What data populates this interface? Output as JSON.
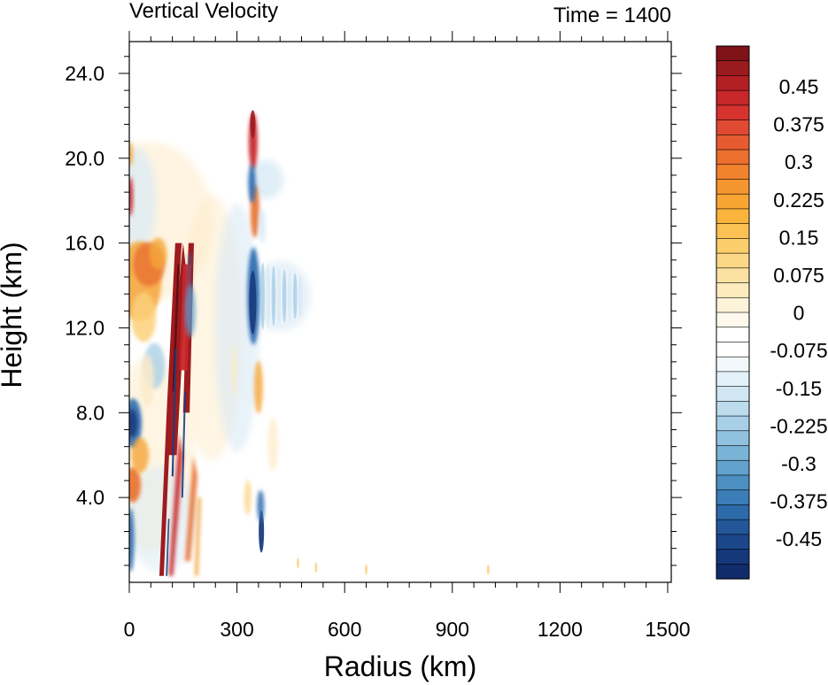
{
  "chart_data": {
    "type": "heatmap",
    "title": "Vertical Velocity",
    "subtitle": "Time = 1400",
    "xlabel": "Radius (km)",
    "ylabel": "Height (km)",
    "xlim": [
      0,
      1510
    ],
    "ylim": [
      0,
      25.5
    ],
    "x_ticks": [
      "0",
      "300",
      "600",
      "900",
      "1200",
      "1500"
    ],
    "y_ticks": [
      "4.0",
      "8.0",
      "12.0",
      "16.0",
      "20.0",
      "24.0"
    ],
    "colorbar": {
      "levels": 40,
      "vmin": -0.5,
      "vmax": 0.5,
      "labels": [
        "0.45",
        "0.375",
        "0.3",
        "0.225",
        "0.15",
        "0.075",
        "0",
        "-0.075",
        "-0.15",
        "-0.225",
        "-0.3",
        "-0.375",
        "-0.45"
      ],
      "colors_top_to_bottom": [
        "#7f1318",
        "#9a1a1e",
        "#b21f23",
        "#c62729",
        "#d6322e",
        "#e04a32",
        "#e65c30",
        "#ec6f2e",
        "#f1822e",
        "#f5952f",
        "#f8a633",
        "#fab43c",
        "#fbc152",
        "#fccd6b",
        "#fcd886",
        "#fce2a2",
        "#fdebbe",
        "#fdf3d8",
        "#fef9ec",
        "#ffffff",
        "#ffffff",
        "#f2f8fc",
        "#e2f0f8",
        "#d0e7f3",
        "#bcdcee",
        "#a7d0e7",
        "#90c2df",
        "#79b3d6",
        "#62a2cc",
        "#4c90c2",
        "#3a7db7",
        "#2d6aa9",
        "#23579a",
        "#1b468a",
        "#15387a",
        "#112c6a"
      ]
    },
    "features": [
      {
        "kind": "updraft",
        "x": [
          110,
          180
        ],
        "y": [
          0.3,
          16
        ],
        "max": 0.5
      },
      {
        "kind": "updraft",
        "x": [
          340,
          350
        ],
        "y": [
          17,
          22
        ],
        "max": 0.4
      },
      {
        "kind": "downdraft",
        "x": [
          0,
          30
        ],
        "y": [
          6.5,
          9
        ],
        "min": -0.4
      },
      {
        "kind": "downdraft",
        "x": [
          340,
          350
        ],
        "y": [
          11,
          15
        ],
        "min": -0.45
      },
      {
        "kind": "downdraft",
        "x": [
          360,
          370
        ],
        "y": [
          1,
          4
        ],
        "min": -0.5
      }
    ]
  }
}
